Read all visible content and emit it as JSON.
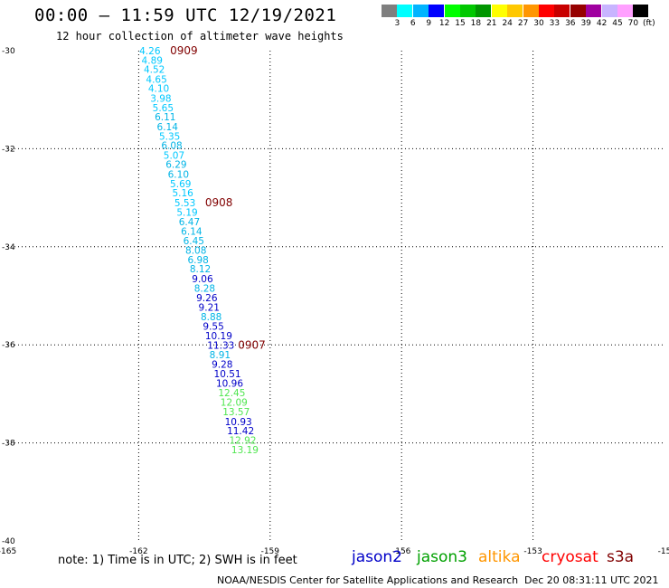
{
  "title": "00:00 – 11:59 UTC 12/19/2021",
  "subtitle": "12 hour collection of altimeter wave heights",
  "colorbar": {
    "colors": [
      "#7f7f7f",
      "#00ffff",
      "#00b4ff",
      "#0000ff",
      "#00ff00",
      "#00c800",
      "#009600",
      "#ffff00",
      "#ffc800",
      "#ff9600",
      "#ff0000",
      "#c80000",
      "#960000",
      "#a000a0",
      "#c8b4ff",
      "#ffa0ff",
      "#000000"
    ],
    "labels": [
      "3",
      "6",
      "9",
      "12",
      "15",
      "18",
      "21",
      "24",
      "27",
      "30",
      "33",
      "36",
      "39",
      "42",
      "45",
      "70",
      "(ft)"
    ]
  },
  "map": {
    "lon_range": [
      -165,
      -150
    ],
    "lat_range": [
      -40,
      -30
    ],
    "x_ticks": [
      "-165",
      "-162",
      "-159",
      "-156",
      "-153",
      "-15"
    ],
    "y_ticks": [
      "-30",
      "-32",
      "-34",
      "-36",
      "-38",
      "-40"
    ],
    "grid": "dotted"
  },
  "chart_data": {
    "type": "scatter",
    "description_points": [
      {
        "lon": -162.15,
        "lat": -30.0,
        "value": "4.26",
        "color": "#00c8ff"
      },
      {
        "lon": -162.1,
        "lat": -30.19,
        "value": "4.89",
        "color": "#00c8ff"
      },
      {
        "lon": -162.05,
        "lat": -30.38,
        "value": "4.52",
        "color": "#00c8ff"
      },
      {
        "lon": -162.0,
        "lat": -30.58,
        "value": "4.65",
        "color": "#00c8ff"
      },
      {
        "lon": -161.95,
        "lat": -30.77,
        "value": "4.10",
        "color": "#00c8ff"
      },
      {
        "lon": -161.9,
        "lat": -30.97,
        "value": "3.98",
        "color": "#00c8ff"
      },
      {
        "lon": -161.85,
        "lat": -31.16,
        "value": "5.65",
        "color": "#00c8ff"
      },
      {
        "lon": -161.8,
        "lat": -31.35,
        "value": "6.11",
        "color": "#00b4e6"
      },
      {
        "lon": -161.75,
        "lat": -31.55,
        "value": "6.14",
        "color": "#00b4e6"
      },
      {
        "lon": -161.7,
        "lat": -31.74,
        "value": "5.35",
        "color": "#00c8ff"
      },
      {
        "lon": -161.65,
        "lat": -31.93,
        "value": "6.08",
        "color": "#00b4e6"
      },
      {
        "lon": -161.6,
        "lat": -32.13,
        "value": "5.07",
        "color": "#00c8ff"
      },
      {
        "lon": -161.55,
        "lat": -32.32,
        "value": "6.29",
        "color": "#00b4e6"
      },
      {
        "lon": -161.5,
        "lat": -32.52,
        "value": "6.10",
        "color": "#00b4e6"
      },
      {
        "lon": -161.45,
        "lat": -32.71,
        "value": "5.69",
        "color": "#00c8ff"
      },
      {
        "lon": -161.4,
        "lat": -32.9,
        "value": "5.16",
        "color": "#00c8ff"
      },
      {
        "lon": -161.35,
        "lat": -33.1,
        "value": "5.53",
        "color": "#00c8ff"
      },
      {
        "lon": -161.3,
        "lat": -33.29,
        "value": "5.19",
        "color": "#00c8ff"
      },
      {
        "lon": -161.25,
        "lat": -33.49,
        "value": "6.47",
        "color": "#00b4e6"
      },
      {
        "lon": -161.2,
        "lat": -33.68,
        "value": "6.14",
        "color": "#00b4e6"
      },
      {
        "lon": -161.15,
        "lat": -33.87,
        "value": "6.45",
        "color": "#00b4e6"
      },
      {
        "lon": -161.1,
        "lat": -34.07,
        "value": "8.08",
        "color": "#00b4e6"
      },
      {
        "lon": -161.05,
        "lat": -34.26,
        "value": "6.98",
        "color": "#00b4e6"
      },
      {
        "lon": -161.0,
        "lat": -34.45,
        "value": "8.12",
        "color": "#00b4e6"
      },
      {
        "lon": -160.95,
        "lat": -34.65,
        "value": "9.06",
        "color": "#0000c8"
      },
      {
        "lon": -160.9,
        "lat": -34.84,
        "value": "8.28",
        "color": "#00b4e6"
      },
      {
        "lon": -160.85,
        "lat": -35.04,
        "value": "9.26",
        "color": "#0000c8"
      },
      {
        "lon": -160.8,
        "lat": -35.23,
        "value": "9.21",
        "color": "#0000c8"
      },
      {
        "lon": -160.75,
        "lat": -35.42,
        "value": "8.88",
        "color": "#00b4e6"
      },
      {
        "lon": -160.7,
        "lat": -35.62,
        "value": "9.55",
        "color": "#0000c8"
      },
      {
        "lon": -160.65,
        "lat": -35.81,
        "value": "10.19",
        "color": "#0000c8"
      },
      {
        "lon": -160.6,
        "lat": -36.01,
        "value": "11.33",
        "color": "#0000c8"
      },
      {
        "lon": -160.55,
        "lat": -36.2,
        "value": "8.91",
        "color": "#00b4e6"
      },
      {
        "lon": -160.5,
        "lat": -36.39,
        "value": "9.28",
        "color": "#0000c8"
      },
      {
        "lon": -160.45,
        "lat": -36.59,
        "value": "10.51",
        "color": "#0000c8"
      },
      {
        "lon": -160.4,
        "lat": -36.78,
        "value": "10.96",
        "color": "#0000c8"
      },
      {
        "lon": -160.35,
        "lat": -36.97,
        "value": "12.45",
        "color": "#50e650"
      },
      {
        "lon": -160.3,
        "lat": -37.17,
        "value": "12.09",
        "color": "#50e650"
      },
      {
        "lon": -160.25,
        "lat": -37.36,
        "value": "13.57",
        "color": "#50e650"
      },
      {
        "lon": -160.2,
        "lat": -37.56,
        "value": "10.93",
        "color": "#0000c8"
      },
      {
        "lon": -160.15,
        "lat": -37.75,
        "value": "11.42",
        "color": "#0000c8"
      },
      {
        "lon": -160.1,
        "lat": -37.94,
        "value": "12.92",
        "color": "#50e650"
      },
      {
        "lon": -160.05,
        "lat": -38.14,
        "value": "13.19",
        "color": "#50e650"
      }
    ],
    "time_labels": [
      {
        "text": "0909",
        "color": "#800000"
      },
      {
        "text": "0908",
        "color": "#800000"
      },
      {
        "text": "0907",
        "color": "#800000"
      }
    ]
  },
  "note": "note:  1) Time is in UTC;  2) SWH is in feet",
  "satellites": [
    {
      "name": "jason2",
      "color": "#0000c8"
    },
    {
      "name": "jason3",
      "color": "#00a000"
    },
    {
      "name": "altika",
      "color": "#ff9600"
    },
    {
      "name": "cryosat",
      "color": "#ff0000"
    },
    {
      "name": "s3a",
      "color": "#800000"
    }
  ],
  "footer_left": "NOAA/NESDIS Center for Satellite Applications and Research",
  "footer_right": "Dec 20 08:31:11 UTC 2021"
}
